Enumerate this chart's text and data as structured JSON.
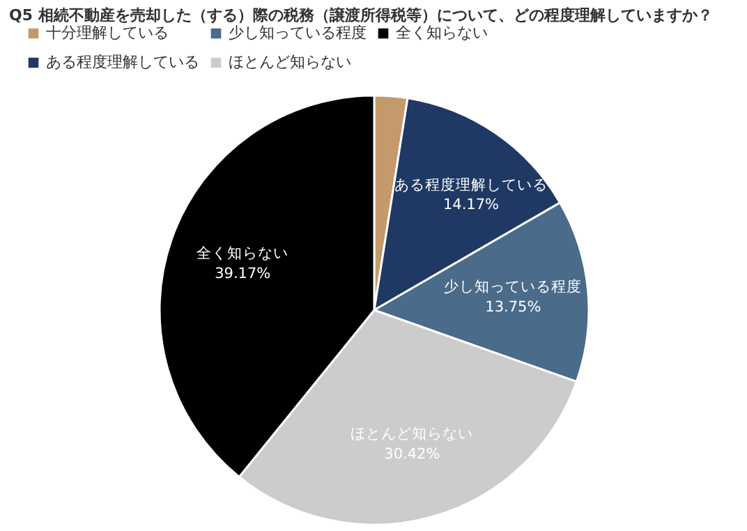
{
  "chart_data": {
    "type": "pie",
    "title": "Q5 相続不動産を売却した（する）際の税務（譲渡所得税等）について、どの程度理解していますか？",
    "categories": [
      "十分理解している",
      "ある程度理解している",
      "少し知っている程度",
      "ほとんど知らない",
      "全く知らない"
    ],
    "values": [
      2.49,
      14.17,
      13.75,
      30.42,
      39.17
    ],
    "colors": [
      "#c49a6c",
      "#1f3864",
      "#4a6b8a",
      "#cccccc",
      "#000000"
    ],
    "value_labels": [
      null,
      "14.17%",
      "13.75%",
      "30.42%",
      "39.17%"
    ],
    "legend": "top"
  }
}
